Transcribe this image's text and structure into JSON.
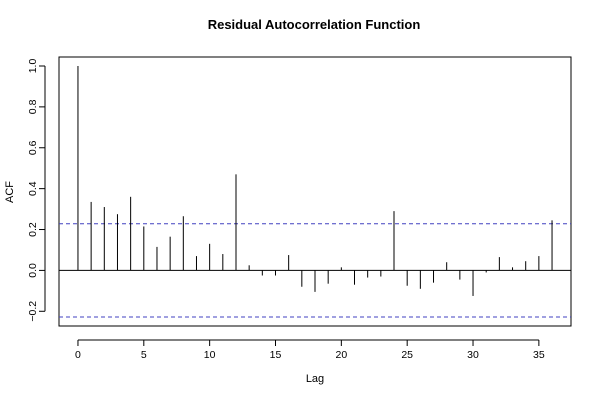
{
  "chart_data": {
    "type": "bar",
    "title": "Residual Autocorrelation Function",
    "xlabel": "Lag",
    "ylabel": "ACF",
    "x": [
      0,
      1,
      2,
      3,
      4,
      5,
      6,
      7,
      8,
      9,
      10,
      11,
      12,
      13,
      14,
      15,
      16,
      17,
      18,
      19,
      20,
      21,
      22,
      23,
      24,
      25,
      26,
      27,
      28,
      29,
      30,
      31,
      32,
      33,
      34,
      35,
      36
    ],
    "values": [
      1.0,
      0.335,
      0.31,
      0.275,
      0.36,
      0.215,
      0.115,
      0.165,
      0.265,
      0.07,
      0.13,
      0.08,
      0.47,
      0.025,
      -0.025,
      -0.025,
      0.075,
      -0.08,
      -0.105,
      -0.065,
      0.015,
      -0.07,
      -0.035,
      -0.03,
      0.29,
      -0.075,
      -0.09,
      -0.06,
      0.04,
      -0.045,
      -0.125,
      -0.01,
      0.065,
      0.015,
      0.045,
      0.07,
      0.245
    ],
    "confidence_band": [
      0.228,
      -0.228
    ],
    "xlim": [
      -1.44,
      37.44
    ],
    "ylim": [
      -0.272,
      1.044
    ],
    "xticks": [
      0,
      5,
      10,
      15,
      20,
      25,
      30,
      35
    ],
    "yticks": [
      -0.2,
      0.0,
      0.2,
      0.4,
      0.6,
      0.8,
      1.0
    ],
    "xtick_labels": [
      "0",
      "5",
      "10",
      "15",
      "20",
      "25",
      "30",
      "35"
    ],
    "ytick_labels": [
      "−0.2",
      "0.0",
      "0.2",
      "0.4",
      "0.6",
      "0.8",
      "1.0"
    ],
    "zero_line": true,
    "grid": false,
    "colors": {
      "bars": "#000000",
      "confidence_lines": "#4040c0",
      "axes": "#000000",
      "background": "#ffffff"
    }
  }
}
